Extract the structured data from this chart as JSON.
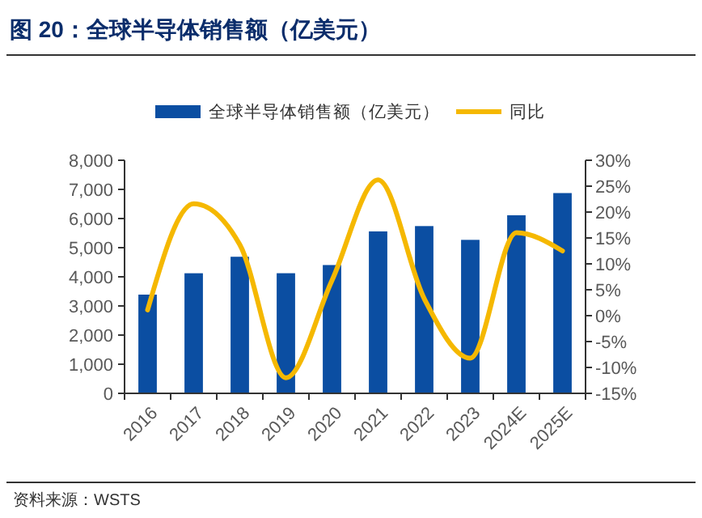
{
  "chart_data": {
    "type": "bar",
    "title": "图 20：全球半导体销售额（亿美元）",
    "categories": [
      "2016",
      "2017",
      "2018",
      "2019",
      "2020",
      "2021",
      "2022",
      "2023",
      "2024E",
      "2025E"
    ],
    "series": [
      {
        "name": "全球半导体销售额（亿美元）",
        "color": "#0b4ea2",
        "values": [
          3389,
          4122,
          4688,
          4123,
          4404,
          5559,
          5741,
          5268,
          6112,
          6874
        ]
      },
      {
        "name": "同比",
        "type": "line",
        "axis": "y2",
        "color": "#f5b800",
        "values": [
          1.1,
          21.6,
          13.7,
          -12.0,
          6.8,
          26.2,
          3.3,
          -8.2,
          16.0,
          12.5
        ]
      }
    ],
    "ylim": [
      0,
      8000
    ],
    "yticks": [
      {
        "value": 0,
        "label": "0"
      },
      {
        "value": 1000,
        "label": "1,000"
      },
      {
        "value": 2000,
        "label": "2,000"
      },
      {
        "value": 3000,
        "label": "3,000"
      },
      {
        "value": 4000,
        "label": "4,000"
      },
      {
        "value": 5000,
        "label": "5,000"
      },
      {
        "value": 6000,
        "label": "6,000"
      },
      {
        "value": 7000,
        "label": "7,000"
      },
      {
        "value": 8000,
        "label": "8,000"
      }
    ],
    "y2lim": [
      -15,
      30
    ],
    "y2ticks": [
      {
        "value": -15,
        "label": "-15%"
      },
      {
        "value": -10,
        "label": "-10%"
      },
      {
        "value": -5,
        "label": "-5%"
      },
      {
        "value": 0,
        "label": "0%"
      },
      {
        "value": 5,
        "label": "5%"
      },
      {
        "value": 10,
        "label": "10%"
      },
      {
        "value": 15,
        "label": "15%"
      },
      {
        "value": 20,
        "label": "20%"
      },
      {
        "value": 25,
        "label": "25%"
      },
      {
        "value": 30,
        "label": "30%"
      }
    ],
    "legend": "top",
    "grid": false,
    "annotations": [
      "资料来源：WSTS"
    ]
  }
}
